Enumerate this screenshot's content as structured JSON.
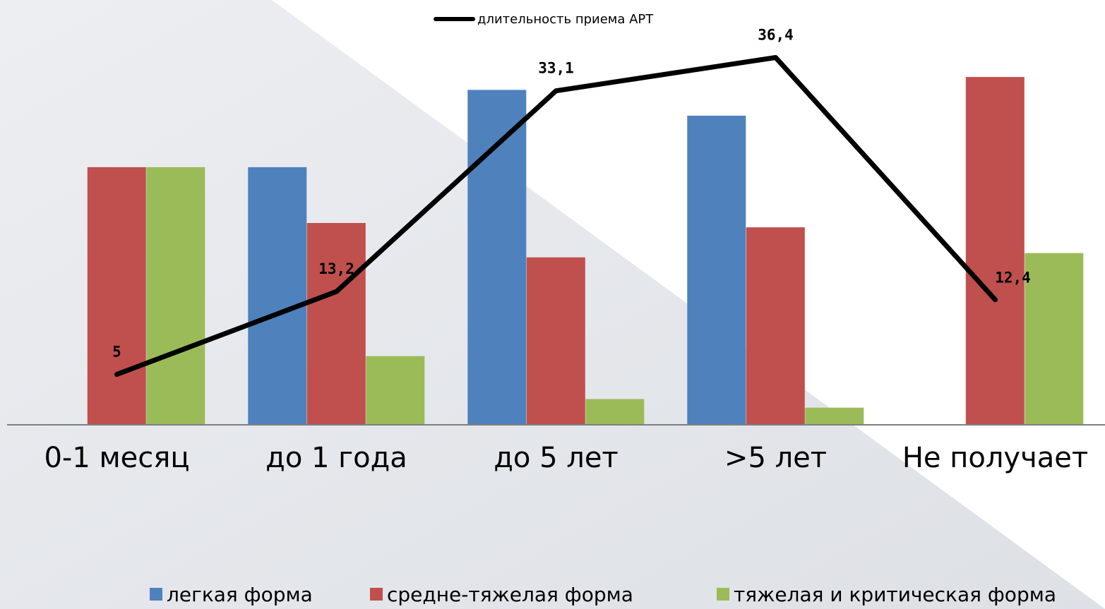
{
  "chart_data": {
    "type": "bar",
    "categories": [
      "0-1 месяц",
      "до 1 года",
      "до 5 лет",
      ">5 лет",
      "Не получает"
    ],
    "series": [
      {
        "name": "легкая форма",
        "values": [
          0,
          30,
          39,
          36,
          0
        ],
        "color": "#4F81BD"
      },
      {
        "name": "средне-тяжелая форма",
        "values": [
          30,
          23.5,
          19.5,
          23,
          40.5
        ],
        "color": "#C0504D"
      },
      {
        "name": "тяжелая и критическая форма",
        "values": [
          30,
          8,
          3,
          2,
          20
        ],
        "color": "#9BBB59"
      }
    ],
    "line": {
      "name": "длительность приема АРТ",
      "values": [
        5,
        13.2,
        33.1,
        36.4,
        12.4
      ],
      "labels": [
        "5",
        "13,2",
        "33,1",
        "36,4",
        "12,4"
      ],
      "color": "#000000"
    },
    "bar_ylim": [
      0,
      47
    ],
    "line_ylim": [
      0,
      40
    ],
    "legend_position": "bottom-right",
    "grid": false
  }
}
